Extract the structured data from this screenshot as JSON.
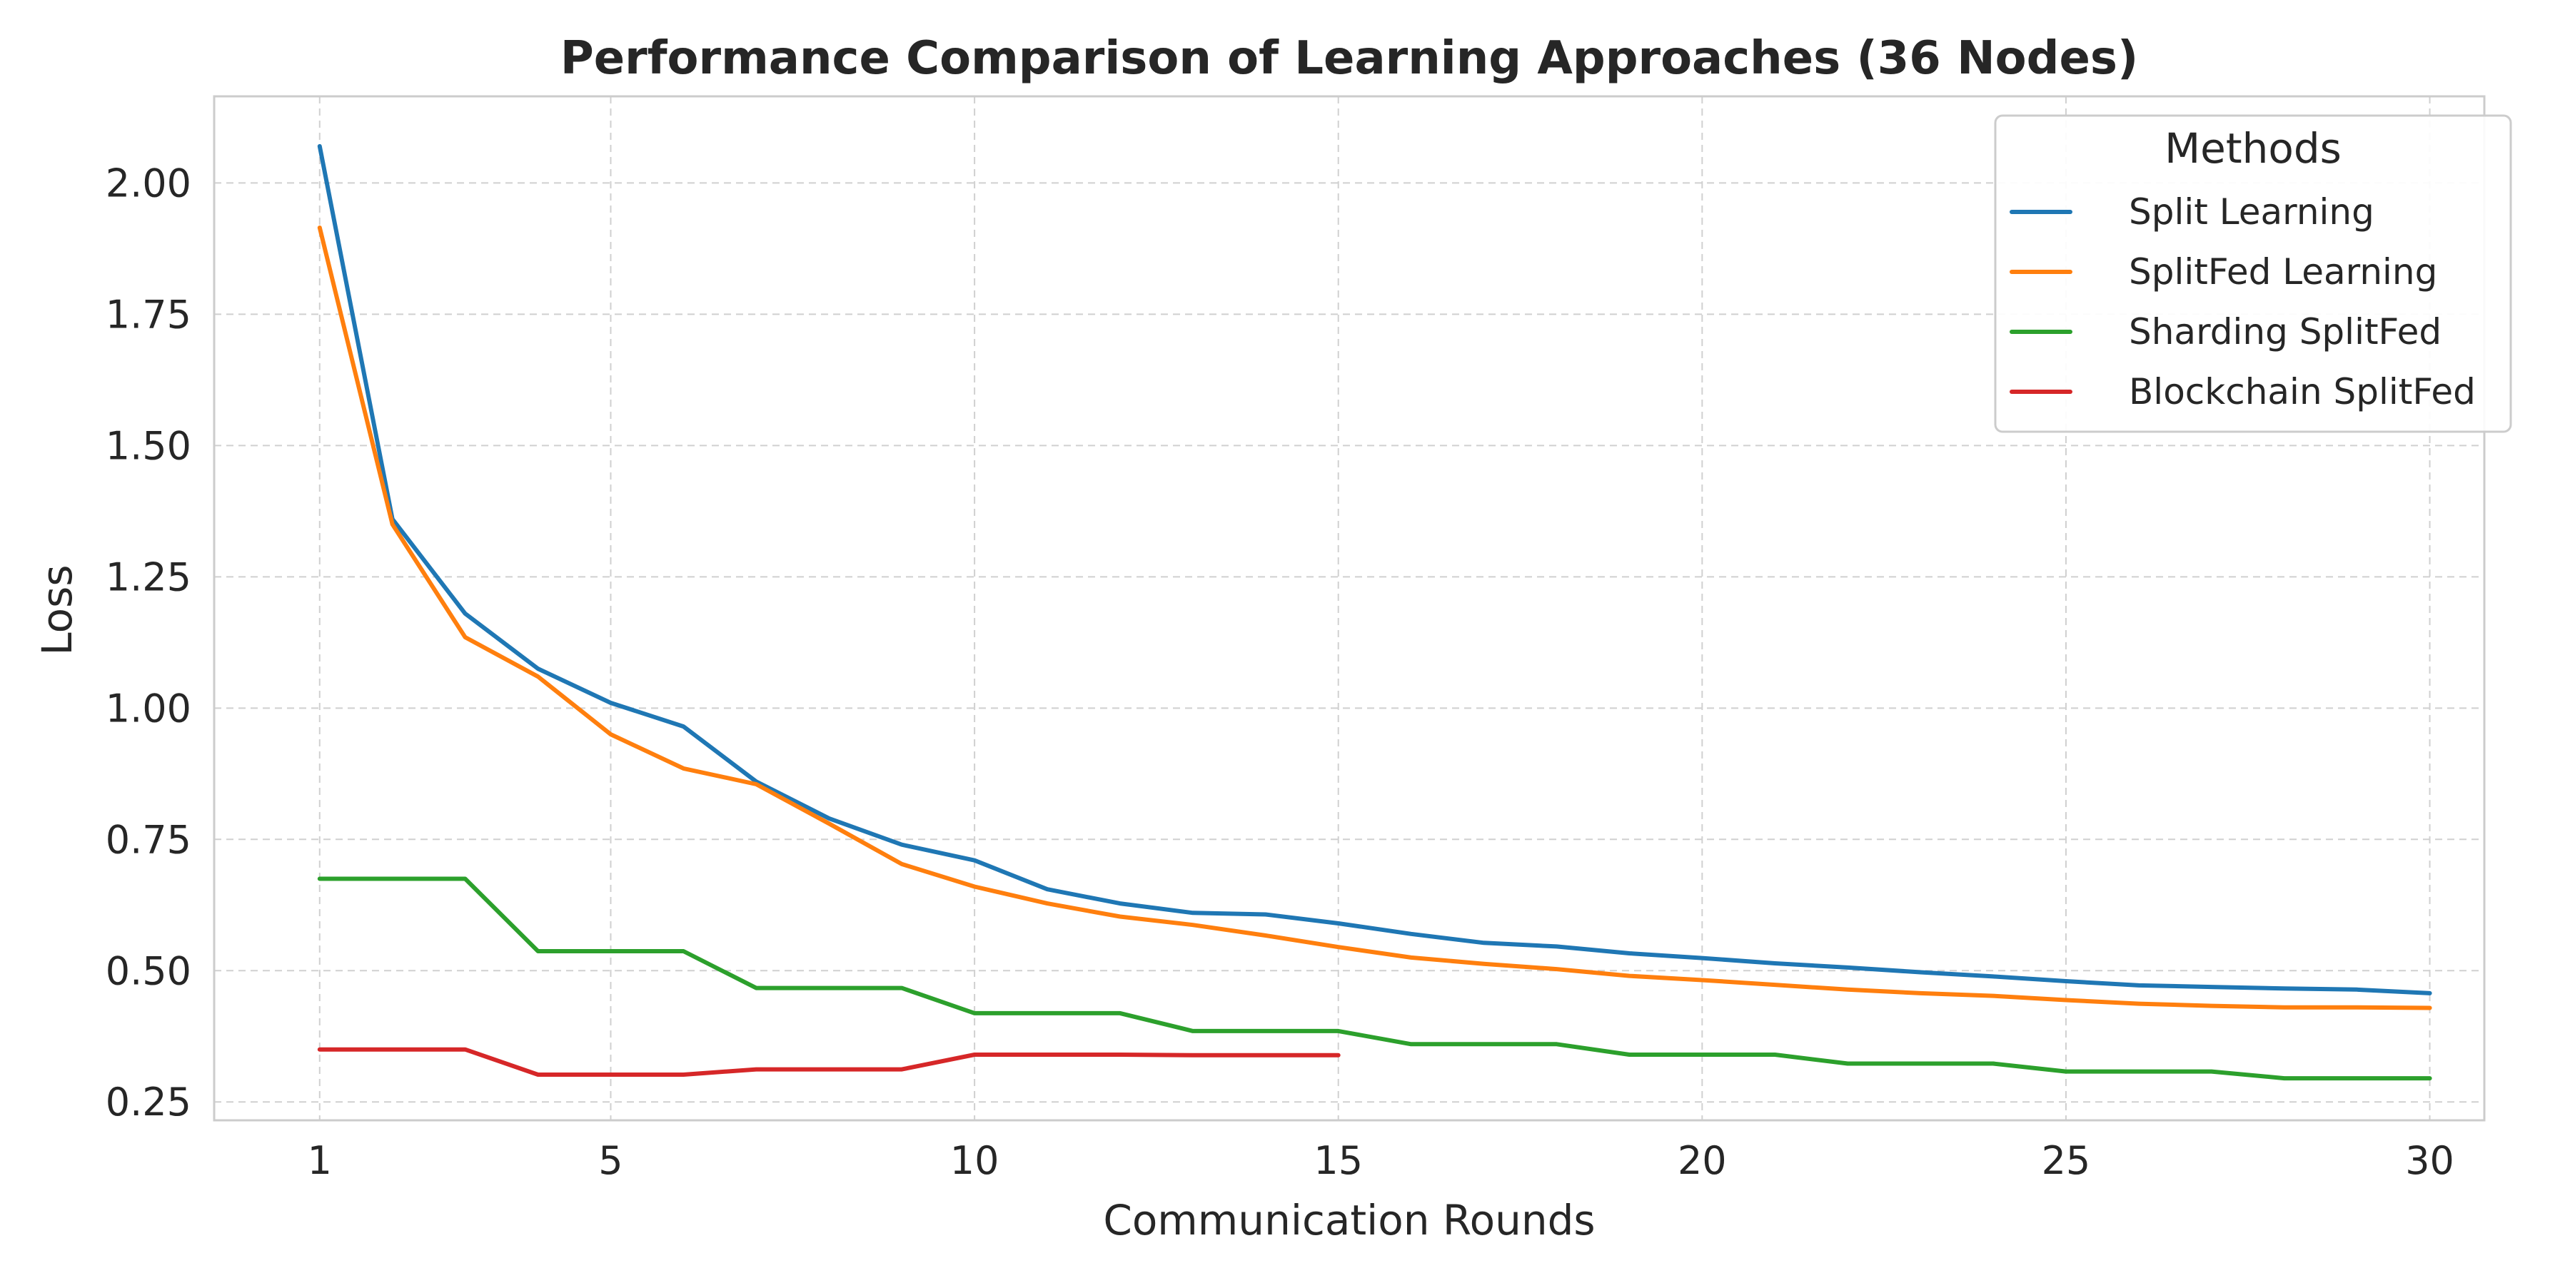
{
  "chart_data": {
    "type": "line",
    "title": "Performance Comparison of Learning Approaches (36 Nodes)",
    "xlabel": "Communication Rounds",
    "ylabel": "Loss",
    "xlim": [
      -0.45,
      30.75
    ],
    "ylim": [
      0.215,
      2.165
    ],
    "xticks": [
      1,
      5,
      10,
      15,
      20,
      25,
      30
    ],
    "xtick_labels": [
      "1",
      "5",
      "10",
      "15",
      "20",
      "25",
      "30"
    ],
    "yticks": [
      0.25,
      0.5,
      0.75,
      1.0,
      1.25,
      1.5,
      1.75,
      2.0
    ],
    "ytick_labels": [
      "0.25",
      "0.50",
      "0.75",
      "1.00",
      "1.25",
      "1.50",
      "1.75",
      "2.00"
    ],
    "grid": true,
    "legend": {
      "title": "Methods",
      "placement": "upper right"
    },
    "series": [
      {
        "name": "Split Learning",
        "color": "#1f77b4",
        "x": [
          1,
          2,
          3,
          4,
          5,
          6,
          7,
          8,
          9,
          10,
          11,
          12,
          13,
          14,
          15,
          16,
          17,
          18,
          19,
          20,
          21,
          22,
          23,
          24,
          25,
          26,
          27,
          28,
          29,
          30
        ],
        "y": [
          2.07,
          1.36,
          1.18,
          1.075,
          1.01,
          0.965,
          0.86,
          0.79,
          0.74,
          0.71,
          0.655,
          0.628,
          0.61,
          0.607,
          0.59,
          0.57,
          0.553,
          0.546,
          0.533,
          0.524,
          0.514,
          0.506,
          0.497,
          0.489,
          0.48,
          0.472,
          0.469,
          0.466,
          0.464,
          0.457
        ]
      },
      {
        "name": "SplitFed Learning",
        "color": "#ff7f0e",
        "x": [
          1,
          2,
          3,
          4,
          5,
          6,
          7,
          8,
          9,
          10,
          11,
          12,
          13,
          14,
          15,
          16,
          17,
          18,
          19,
          20,
          21,
          22,
          23,
          24,
          25,
          26,
          27,
          28,
          29,
          30
        ],
        "y": [
          1.915,
          1.35,
          1.135,
          1.06,
          0.95,
          0.885,
          0.855,
          0.78,
          0.703,
          0.66,
          0.628,
          0.603,
          0.587,
          0.567,
          0.545,
          0.525,
          0.513,
          0.503,
          0.49,
          0.482,
          0.473,
          0.464,
          0.457,
          0.452,
          0.444,
          0.437,
          0.433,
          0.43,
          0.43,
          0.429
        ]
      },
      {
        "name": "Sharding SplitFed",
        "color": "#2ca02c",
        "x": [
          1,
          2,
          3,
          4,
          5,
          6,
          7,
          8,
          9,
          10,
          11,
          12,
          13,
          14,
          15,
          16,
          17,
          18,
          19,
          20,
          21,
          22,
          23,
          24,
          25,
          26,
          27,
          28,
          29,
          30
        ],
        "y": [
          0.675,
          0.675,
          0.675,
          0.537,
          0.537,
          0.537,
          0.467,
          0.467,
          0.467,
          0.419,
          0.419,
          0.419,
          0.385,
          0.385,
          0.385,
          0.36,
          0.36,
          0.36,
          0.34,
          0.34,
          0.34,
          0.323,
          0.323,
          0.323,
          0.308,
          0.308,
          0.308,
          0.295,
          0.295,
          0.295
        ]
      },
      {
        "name": "Blockchain SplitFed",
        "color": "#d62728",
        "x": [
          1,
          2,
          3,
          4,
          5,
          6,
          7,
          8,
          9,
          10,
          11,
          12,
          13,
          14,
          15
        ],
        "y": [
          0.35,
          0.35,
          0.35,
          0.302,
          0.302,
          0.302,
          0.312,
          0.312,
          0.312,
          0.34,
          0.34,
          0.34,
          0.339,
          0.339,
          0.339
        ]
      }
    ]
  }
}
